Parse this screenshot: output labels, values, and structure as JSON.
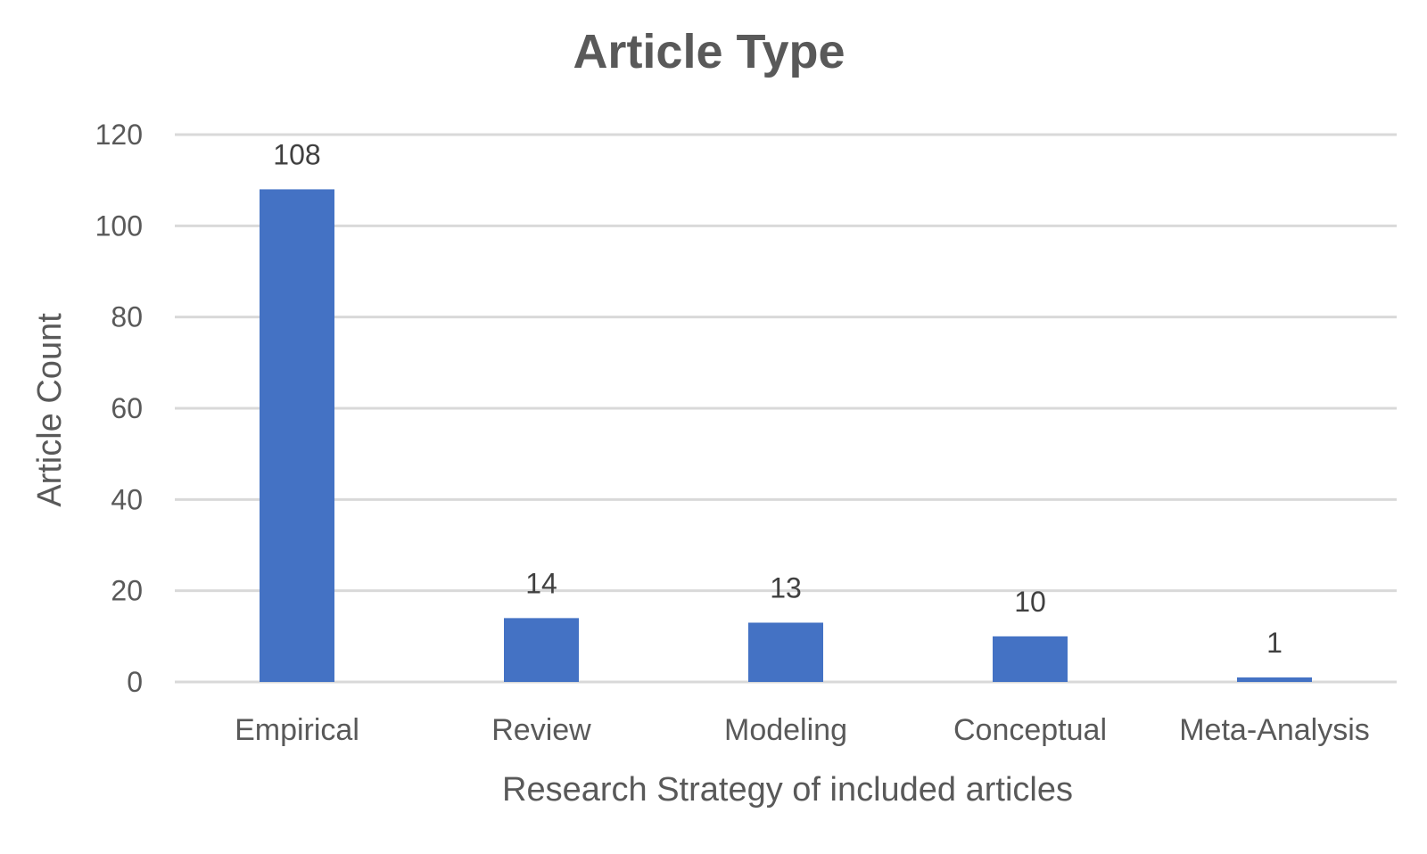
{
  "chart_data": {
    "type": "bar",
    "title": "Article Type",
    "xlabel": "Research Strategy of included articles",
    "ylabel": "Article Count",
    "categories": [
      "Empirical",
      "Review",
      "Modeling",
      "Conceptual",
      "Meta-Analysis"
    ],
    "values": [
      108,
      14,
      13,
      10,
      1
    ],
    "value_labels": [
      "108",
      "14",
      "13",
      "10",
      "1"
    ],
    "yticks": [
      0,
      20,
      40,
      60,
      80,
      100,
      120
    ],
    "ytick_labels": [
      "0",
      "20",
      "40",
      "60",
      "80",
      "100",
      "120"
    ],
    "ylim": [
      0,
      120
    ],
    "grid": true,
    "legend": "none",
    "bar_color": "#4472c4"
  }
}
